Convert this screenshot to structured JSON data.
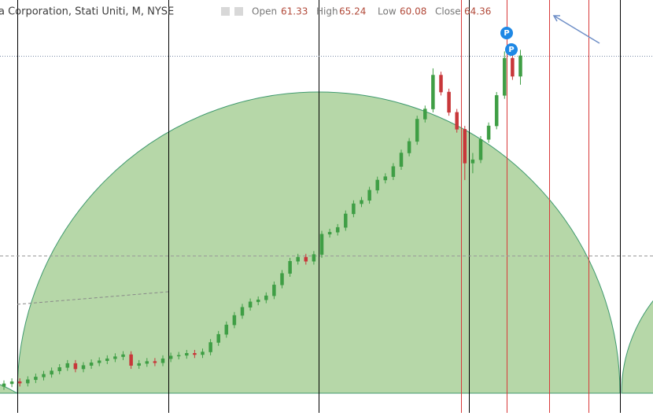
{
  "chart_data": {
    "type": "candlestick",
    "title": "a Corporation, Stati Uniti, M, NYSE",
    "ohlc_labels": [
      "Open",
      "High",
      "Low",
      "Close"
    ],
    "ohlc_values": [
      61.33,
      65.24,
      60.08,
      64.36
    ],
    "markers": [
      "P",
      "P"
    ],
    "up_color": "#3f9e45",
    "down_color": "#c8373a",
    "ylim": [
      11.6,
      72.6
    ],
    "ohlc": [
      [
        15.5,
        16.4,
        15.0,
        15.9
      ],
      [
        15.9,
        16.7,
        15.4,
        16.2
      ],
      [
        16.2,
        16.7,
        15.5,
        16.0
      ],
      [
        16.0,
        17.0,
        15.5,
        16.5
      ],
      [
        16.5,
        17.4,
        16.0,
        16.9
      ],
      [
        16.9,
        17.8,
        16.4,
        17.3
      ],
      [
        17.3,
        18.3,
        16.8,
        17.8
      ],
      [
        17.8,
        18.8,
        17.3,
        18.3
      ],
      [
        18.3,
        19.4,
        17.8,
        18.9
      ],
      [
        18.9,
        19.4,
        17.6,
        18.1
      ],
      [
        18.1,
        19.1,
        17.6,
        18.6
      ],
      [
        18.6,
        19.5,
        18.1,
        19.0
      ],
      [
        19.0,
        19.8,
        18.5,
        19.3
      ],
      [
        19.3,
        20.1,
        18.8,
        19.6
      ],
      [
        19.6,
        20.4,
        19.1,
        19.9
      ],
      [
        19.9,
        20.7,
        19.4,
        20.2
      ],
      [
        20.2,
        20.7,
        18.1,
        18.6
      ],
      [
        18.6,
        19.4,
        18.1,
        18.9
      ],
      [
        18.9,
        19.7,
        18.4,
        19.2
      ],
      [
        19.2,
        19.7,
        18.5,
        19.0
      ],
      [
        19.0,
        20.1,
        18.5,
        19.6
      ],
      [
        19.6,
        20.5,
        19.1,
        20.0
      ],
      [
        20.0,
        20.6,
        19.5,
        20.1
      ],
      [
        20.1,
        20.9,
        19.6,
        20.4
      ],
      [
        20.4,
        20.9,
        19.7,
        20.2
      ],
      [
        20.2,
        21.1,
        19.7,
        20.6
      ],
      [
        20.6,
        22.5,
        20.1,
        22.0
      ],
      [
        22.0,
        23.7,
        21.5,
        23.2
      ],
      [
        23.2,
        25.1,
        22.7,
        24.6
      ],
      [
        24.6,
        26.5,
        24.1,
        26.0
      ],
      [
        26.0,
        27.7,
        25.5,
        27.2
      ],
      [
        27.2,
        28.5,
        26.7,
        28.0
      ],
      [
        28.0,
        28.8,
        27.5,
        28.3
      ],
      [
        28.3,
        29.4,
        27.8,
        28.9
      ],
      [
        28.9,
        31.0,
        28.4,
        30.5
      ],
      [
        30.5,
        32.7,
        30.0,
        32.2
      ],
      [
        32.2,
        34.5,
        31.7,
        34.0
      ],
      [
        34.0,
        35.1,
        33.5,
        34.6
      ],
      [
        34.6,
        35.1,
        33.5,
        34.0
      ],
      [
        34.0,
        35.5,
        33.5,
        35.0
      ],
      [
        35.0,
        38.5,
        34.5,
        38.0
      ],
      [
        38.0,
        38.8,
        37.5,
        38.3
      ],
      [
        38.3,
        39.5,
        37.8,
        39.0
      ],
      [
        39.0,
        41.5,
        38.5,
        41.0
      ],
      [
        41.0,
        43.0,
        40.5,
        42.5
      ],
      [
        42.5,
        43.5,
        42.0,
        43.0
      ],
      [
        43.0,
        45.0,
        42.5,
        44.5
      ],
      [
        44.5,
        46.5,
        44.0,
        46.0
      ],
      [
        46.0,
        47.0,
        45.5,
        46.5
      ],
      [
        46.5,
        48.5,
        46.0,
        48.0
      ],
      [
        48.0,
        50.5,
        47.5,
        50.0
      ],
      [
        50.0,
        52.2,
        49.5,
        51.7
      ],
      [
        51.7,
        55.5,
        51.2,
        55.0
      ],
      [
        55.0,
        57.0,
        54.5,
        56.5
      ],
      [
        56.5,
        62.5,
        56.0,
        61.5
      ],
      [
        61.5,
        62.0,
        58.5,
        59.0
      ],
      [
        59.0,
        59.5,
        55.5,
        56.0
      ],
      [
        56.0,
        56.5,
        53.0,
        53.5
      ],
      [
        53.5,
        54.0,
        46.0,
        48.5
      ],
      [
        48.5,
        50.0,
        47.0,
        49.0
      ],
      [
        49.0,
        52.5,
        48.5,
        52.0
      ],
      [
        52.0,
        54.5,
        51.5,
        54.0
      ],
      [
        54.0,
        59.0,
        53.5,
        58.5
      ],
      [
        58.5,
        65.0,
        58.0,
        64.0
      ],
      [
        64.0,
        64.5,
        60.8,
        61.33
      ],
      [
        61.33,
        65.24,
        60.08,
        64.36
      ]
    ]
  }
}
